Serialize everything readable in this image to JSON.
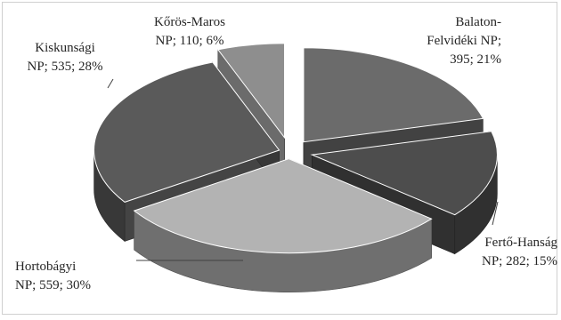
{
  "chart_data": {
    "type": "pie",
    "variant": "3d-exploded",
    "series": [
      {
        "values": [
          395,
          282,
          559,
          535,
          110
        ],
        "categories": [
          "Balaton-Felvidéki NP",
          "Fertő-Hanság NP",
          "Hortobágyi NP",
          "Kiskunsági NP",
          "Kőrös-Maros NP"
        ],
        "percentages": [
          "21%",
          "15%",
          "30%",
          "28%",
          "6%"
        ]
      }
    ],
    "labels": [
      {
        "lines": [
          "Balaton-",
          "Felvidéki NP;",
          "395; 21%"
        ]
      },
      {
        "lines": [
          "Fertő-Hanság",
          "NP; 282; 15%"
        ]
      },
      {
        "lines": [
          "Hortobágyi",
          "NP; 559; 30%"
        ]
      },
      {
        "lines": [
          "Kiskunsági",
          "NP; 535; 28%"
        ]
      },
      {
        "lines": [
          "Kőrös-Maros",
          "NP; 110; 6%"
        ]
      }
    ],
    "colors": {
      "balaton": "#6b6b6b",
      "ferto": "#4d4d4d",
      "hortobagy": "#b3b3b3",
      "kiskunsag": "#5a5a5a",
      "koros": "#8e8e8e"
    },
    "legend": "none",
    "grid": false
  }
}
